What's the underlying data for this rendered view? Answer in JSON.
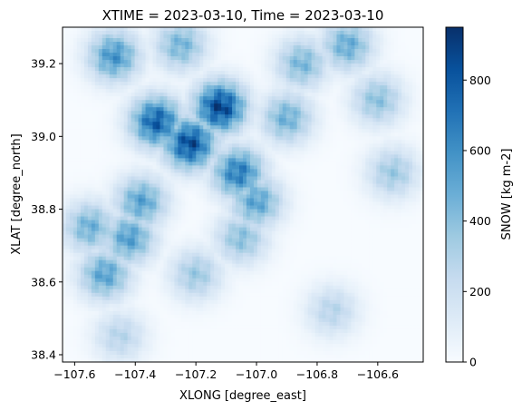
{
  "chart_data": {
    "type": "heatmap",
    "title": "XTIME = 2023-03-10, Time = 2023-03-10",
    "xlabel": "XLONG [degree_east]",
    "ylabel": "XLAT [degree_north]",
    "xlim": [
      -107.64,
      -106.45
    ],
    "ylim": [
      38.38,
      39.3
    ],
    "x_ticks": [
      -107.6,
      -107.4,
      -107.2,
      -107.0,
      -106.8,
      -106.6
    ],
    "x_tick_labels": [
      "−107.6",
      "−107.4",
      "−107.2",
      "−107.0",
      "−106.8",
      "−106.6"
    ],
    "y_ticks": [
      38.4,
      38.6,
      38.8,
      39.0,
      39.2
    ],
    "y_tick_labels": [
      "38.4",
      "38.6",
      "38.8",
      "39.0",
      "39.2"
    ],
    "colorbar": {
      "label": "SNOW [kg m-2]",
      "colormap": "Blues",
      "range": [
        0,
        950
      ],
      "ticks": [
        0,
        200,
        400,
        600,
        800
      ],
      "tick_labels": [
        "0",
        "200",
        "400",
        "600",
        "800"
      ]
    },
    "snow_maxima": [
      {
        "lon": -107.12,
        "lat": 39.08,
        "value": 940
      },
      {
        "lon": -107.22,
        "lat": 38.98,
        "value": 900
      },
      {
        "lon": -107.33,
        "lat": 39.04,
        "value": 830
      },
      {
        "lon": -107.06,
        "lat": 38.9,
        "value": 720
      },
      {
        "lon": -107.0,
        "lat": 38.82,
        "value": 560
      },
      {
        "lon": -107.47,
        "lat": 39.22,
        "value": 620
      },
      {
        "lon": -107.42,
        "lat": 38.72,
        "value": 580
      },
      {
        "lon": -107.5,
        "lat": 38.62,
        "value": 560
      },
      {
        "lon": -107.38,
        "lat": 38.82,
        "value": 560
      },
      {
        "lon": -107.55,
        "lat": 38.75,
        "value": 500
      },
      {
        "lon": -106.9,
        "lat": 39.05,
        "value": 500
      },
      {
        "lon": -106.7,
        "lat": 39.25,
        "value": 520
      },
      {
        "lon": -106.85,
        "lat": 39.2,
        "value": 470
      },
      {
        "lon": -107.25,
        "lat": 39.25,
        "value": 480
      },
      {
        "lon": -107.05,
        "lat": 38.72,
        "value": 430
      },
      {
        "lon": -107.2,
        "lat": 38.62,
        "value": 380
      },
      {
        "lon": -106.55,
        "lat": 38.9,
        "value": 380
      },
      {
        "lon": -106.6,
        "lat": 39.1,
        "value": 420
      },
      {
        "lon": -106.75,
        "lat": 38.52,
        "value": 300
      },
      {
        "lon": -107.45,
        "lat": 38.45,
        "value": 300
      }
    ]
  }
}
